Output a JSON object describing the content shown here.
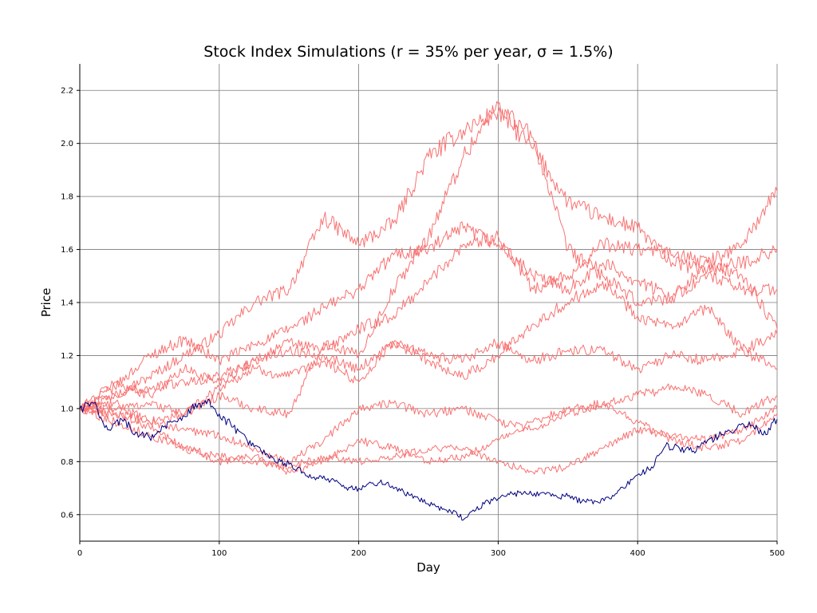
{
  "chart_data": {
    "type": "line",
    "title": "Stock Index Simulations (r = 35% per year, σ = 1.5%)",
    "xlabel": "Day",
    "ylabel": "Price",
    "xlim": [
      0,
      500
    ],
    "ylim": [
      0.5,
      2.3
    ],
    "xticks": [
      0,
      100,
      200,
      300,
      400,
      500
    ],
    "yticks": [
      0.6,
      0.8,
      1.0,
      1.2,
      1.4,
      1.6,
      1.8,
      2.0,
      2.2
    ],
    "xtick_labels": [
      "0",
      "100",
      "200",
      "300",
      "400",
      "500"
    ],
    "ytick_labels": [
      "0.6",
      "0.8",
      "1.0",
      "1.2",
      "1.4",
      "1.6",
      "1.8",
      "2.0",
      "2.2"
    ],
    "grid": true,
    "colors": {
      "highlight": "#00007f",
      "others": "#f87272"
    },
    "series": [
      {
        "color": "#f87272",
        "x": [
          0,
          25,
          50,
          75,
          100,
          125,
          150,
          175,
          200,
          225,
          250,
          275,
          300,
          325,
          350,
          375,
          400,
          425,
          450,
          475,
          500
        ],
        "y": [
          1.0,
          1.05,
          1.12,
          1.2,
          1.28,
          1.4,
          1.45,
          1.72,
          1.62,
          1.7,
          1.95,
          2.05,
          2.12,
          1.98,
          1.78,
          1.72,
          1.68,
          1.55,
          1.52,
          1.55,
          1.6
        ]
      },
      {
        "color": "#f87272",
        "x": [
          0,
          25,
          50,
          75,
          100,
          125,
          150,
          175,
          200,
          225,
          250,
          275,
          300,
          325,
          350,
          375,
          400,
          425,
          450,
          475,
          500
        ],
        "y": [
          1.0,
          1.02,
          0.95,
          0.98,
          1.05,
          1.0,
          0.98,
          1.25,
          1.2,
          1.45,
          1.65,
          1.95,
          2.15,
          2.02,
          1.6,
          1.5,
          1.4,
          1.42,
          1.55,
          1.62,
          1.82
        ]
      },
      {
        "color": "#f87272",
        "x": [
          0,
          25,
          50,
          75,
          100,
          125,
          150,
          175,
          200,
          225,
          250,
          275,
          300,
          325,
          350,
          375,
          400,
          425,
          450,
          475,
          500
        ],
        "y": [
          1.0,
          1.08,
          1.2,
          1.26,
          1.18,
          1.24,
          1.3,
          1.38,
          1.45,
          1.58,
          1.6,
          1.68,
          1.62,
          1.5,
          1.45,
          1.55,
          1.48,
          1.42,
          1.5,
          1.45,
          1.45
        ]
      },
      {
        "color": "#f87272",
        "x": [
          0,
          25,
          50,
          75,
          100,
          125,
          150,
          175,
          200,
          225,
          250,
          275,
          300,
          325,
          350,
          375,
          400,
          425,
          450,
          475,
          500
        ],
        "y": [
          1.0,
          1.1,
          1.05,
          1.15,
          1.1,
          1.18,
          1.25,
          1.22,
          1.3,
          1.35,
          1.48,
          1.62,
          1.65,
          1.45,
          1.5,
          1.62,
          1.6,
          1.58,
          1.55,
          1.5,
          1.3
        ]
      },
      {
        "color": "#f87272",
        "x": [
          0,
          25,
          50,
          75,
          100,
          125,
          150,
          175,
          200,
          225,
          250,
          275,
          300,
          325,
          350,
          375,
          400,
          425,
          450,
          475,
          500
        ],
        "y": [
          1.0,
          1.05,
          1.08,
          1.1,
          1.12,
          1.18,
          1.22,
          1.2,
          1.15,
          1.25,
          1.18,
          1.12,
          1.2,
          1.32,
          1.4,
          1.48,
          1.35,
          1.3,
          1.38,
          1.22,
          1.15
        ]
      },
      {
        "color": "#f87272",
        "x": [
          0,
          25,
          50,
          75,
          100,
          125,
          150,
          175,
          200,
          225,
          250,
          275,
          300,
          325,
          350,
          375,
          400,
          425,
          450,
          475,
          500
        ],
        "y": [
          1.0,
          1.0,
          1.02,
          0.98,
          1.08,
          1.15,
          1.12,
          1.18,
          1.1,
          1.25,
          1.2,
          1.18,
          1.25,
          1.18,
          1.22,
          1.22,
          1.15,
          1.2,
          1.18,
          1.22,
          1.28
        ]
      },
      {
        "color": "#f87272",
        "x": [
          0,
          25,
          50,
          75,
          100,
          125,
          150,
          175,
          200,
          225,
          250,
          275,
          300,
          325,
          350,
          375,
          400,
          425,
          450,
          475,
          500
        ],
        "y": [
          1.0,
          0.98,
          0.95,
          0.92,
          0.9,
          0.85,
          0.8,
          0.88,
          1.0,
          1.02,
          0.98,
          1.0,
          0.95,
          0.92,
          0.98,
          1.02,
          1.05,
          1.08,
          1.05,
          0.98,
          1.05
        ]
      },
      {
        "color": "#f87272",
        "x": [
          0,
          25,
          50,
          75,
          100,
          125,
          150,
          175,
          200,
          225,
          250,
          275,
          300,
          325,
          350,
          375,
          400,
          425,
          450,
          475,
          500
        ],
        "y": [
          1.0,
          0.95,
          0.9,
          0.85,
          0.82,
          0.8,
          0.78,
          0.82,
          0.8,
          0.82,
          0.85,
          0.85,
          0.8,
          0.76,
          0.78,
          0.85,
          0.92,
          0.9,
          0.88,
          0.92,
          1.0
        ]
      },
      {
        "color": "#f87272",
        "x": [
          0,
          25,
          50,
          75,
          100,
          125,
          150,
          175,
          200,
          225,
          250,
          275,
          300,
          325,
          350,
          375,
          400,
          425,
          450,
          475,
          500
        ],
        "y": [
          1.0,
          0.98,
          0.93,
          0.85,
          0.8,
          0.82,
          0.76,
          0.8,
          0.88,
          0.85,
          0.8,
          0.82,
          0.88,
          0.95,
          1.0,
          1.02,
          0.95,
          0.88,
          0.85,
          0.88,
          0.98
        ]
      },
      {
        "color": "#00007f",
        "x": [
          0,
          10,
          20,
          30,
          40,
          50,
          60,
          70,
          80,
          90,
          100,
          110,
          120,
          130,
          140,
          150,
          160,
          170,
          180,
          190,
          200,
          210,
          220,
          230,
          240,
          250,
          260,
          270,
          275,
          280,
          290,
          300,
          310,
          320,
          330,
          340,
          350,
          360,
          370,
          380,
          390,
          400,
          410,
          420,
          430,
          440,
          450,
          460,
          470,
          480,
          490,
          500
        ],
        "y": [
          1.0,
          1.02,
          0.92,
          0.96,
          0.91,
          0.89,
          0.93,
          0.95,
          1.0,
          1.03,
          0.98,
          0.93,
          0.88,
          0.84,
          0.8,
          0.79,
          0.76,
          0.74,
          0.73,
          0.7,
          0.7,
          0.72,
          0.72,
          0.69,
          0.67,
          0.64,
          0.62,
          0.61,
          0.58,
          0.61,
          0.64,
          0.66,
          0.68,
          0.68,
          0.68,
          0.67,
          0.67,
          0.65,
          0.65,
          0.66,
          0.7,
          0.75,
          0.78,
          0.86,
          0.85,
          0.84,
          0.88,
          0.9,
          0.92,
          0.95,
          0.9,
          0.96
        ]
      }
    ]
  }
}
